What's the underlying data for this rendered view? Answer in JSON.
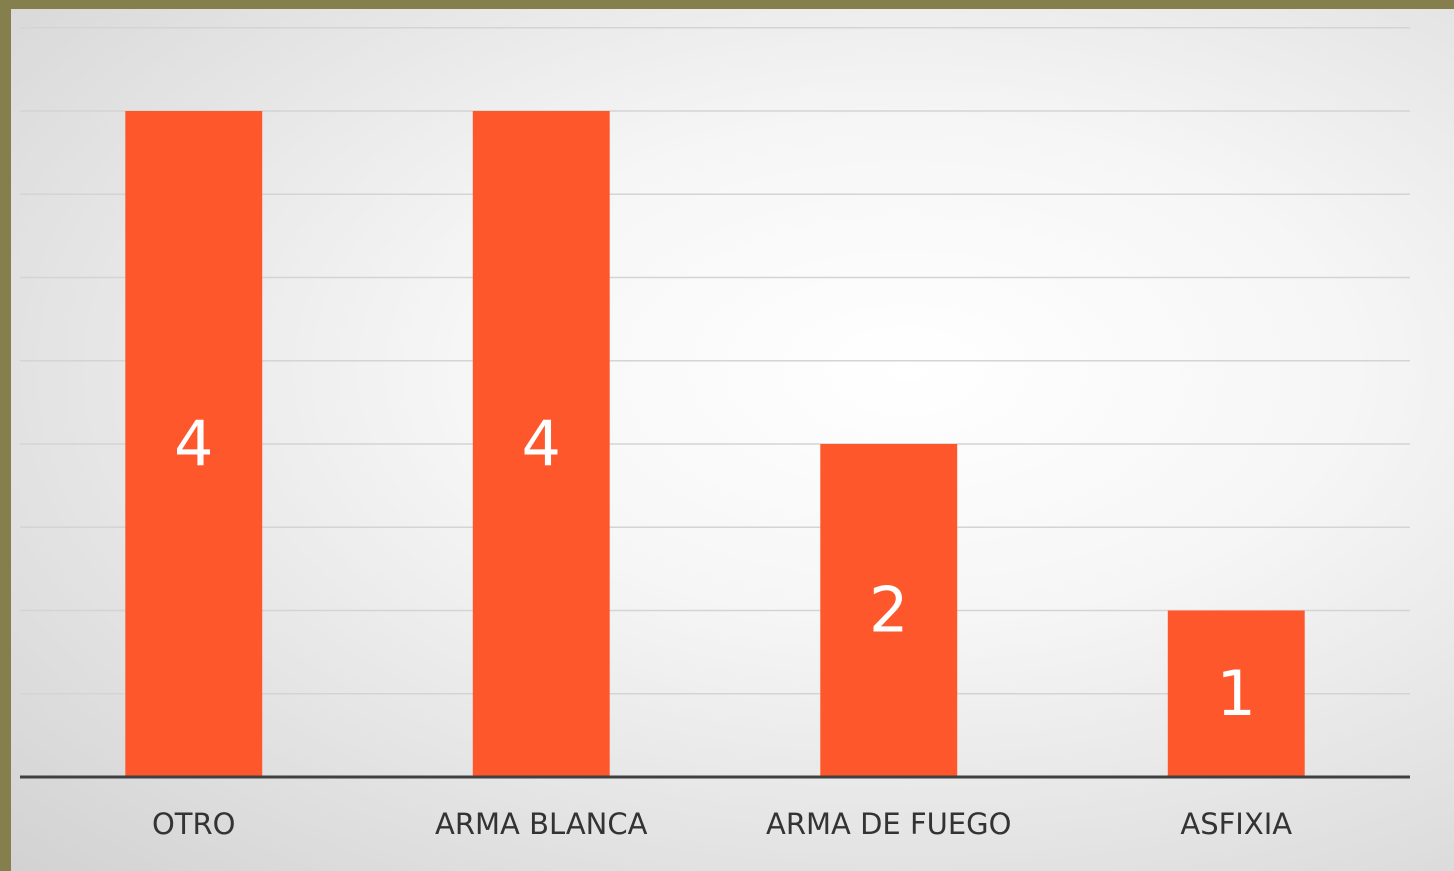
{
  "chart_data": {
    "type": "bar",
    "categories": [
      "OTRO",
      "ARMA BLANCA",
      "ARMA DE FUEGO",
      "ASFIXIA"
    ],
    "values": [
      4,
      4,
      2,
      1
    ],
    "color": "#fe572c",
    "ylim": [
      0,
      4.5
    ],
    "yticks": [
      0,
      0.5,
      1,
      1.5,
      2,
      2.5,
      3,
      3.5,
      4,
      4.5
    ],
    "grid": true
  }
}
